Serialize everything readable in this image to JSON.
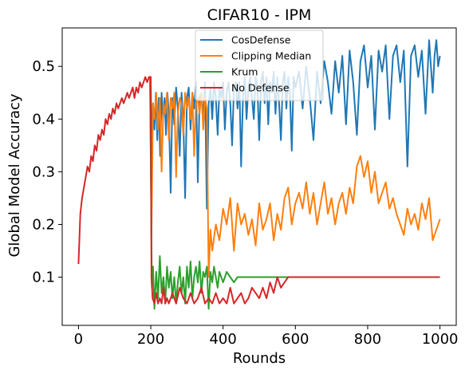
{
  "chart_data": {
    "type": "line",
    "title": "CIFAR10 - IPM",
    "xlabel": "Rounds",
    "ylabel": "Global Model Accuracy",
    "xlim": [
      -45,
      1045
    ],
    "ylim": [
      0.0085,
      0.573
    ],
    "xticks": [
      0,
      200,
      400,
      600,
      800,
      1000
    ],
    "yticks": [
      0.1,
      0.2,
      0.3,
      0.4,
      0.5
    ],
    "xtick_labels": [
      "0",
      "200",
      "400",
      "600",
      "800",
      "1000"
    ],
    "ytick_labels": [
      "0.1",
      "0.2",
      "0.3",
      "0.4",
      "0.5"
    ],
    "grid": false,
    "legend_position": "top-center",
    "series": [
      {
        "name": "CosDefense",
        "color": "#1f77b4",
        "x": [
          200,
          203,
          206,
          210,
          214,
          218,
          222,
          226,
          230,
          234,
          238,
          242,
          246,
          250,
          255,
          260,
          265,
          270,
          275,
          280,
          285,
          290,
          295,
          300,
          305,
          310,
          315,
          320,
          325,
          330,
          335,
          340,
          345,
          350,
          355,
          360,
          365,
          370,
          375,
          380,
          385,
          390,
          395,
          400,
          405,
          410,
          415,
          420,
          425,
          430,
          435,
          440,
          445,
          450,
          455,
          460,
          465,
          470,
          475,
          480,
          485,
          490,
          495,
          500,
          505,
          510,
          515,
          520,
          525,
          530,
          535,
          540,
          545,
          550,
          555,
          560,
          565,
          570,
          575,
          580,
          585,
          590,
          595,
          600,
          610,
          620,
          630,
          640,
          650,
          660,
          670,
          680,
          690,
          700,
          710,
          720,
          730,
          740,
          750,
          760,
          770,
          780,
          790,
          800,
          810,
          820,
          830,
          840,
          850,
          860,
          870,
          880,
          890,
          900,
          910,
          920,
          930,
          940,
          950,
          960,
          970,
          980,
          985,
          990,
          995,
          1000
        ],
        "y": [
          0.47,
          0.3,
          0.43,
          0.38,
          0.45,
          0.36,
          0.44,
          0.33,
          0.45,
          0.4,
          0.44,
          0.37,
          0.45,
          0.41,
          0.26,
          0.44,
          0.39,
          0.46,
          0.42,
          0.33,
          0.45,
          0.4,
          0.25,
          0.44,
          0.46,
          0.38,
          0.45,
          0.42,
          0.47,
          0.28,
          0.44,
          0.45,
          0.4,
          0.47,
          0.23,
          0.43,
          0.46,
          0.4,
          0.47,
          0.44,
          0.37,
          0.46,
          0.44,
          0.47,
          0.38,
          0.45,
          0.47,
          0.43,
          0.35,
          0.46,
          0.47,
          0.42,
          0.47,
          0.31,
          0.44,
          0.48,
          0.4,
          0.46,
          0.48,
          0.44,
          0.4,
          0.48,
          0.46,
          0.36,
          0.47,
          0.49,
          0.43,
          0.48,
          0.39,
          0.47,
          0.45,
          0.49,
          0.41,
          0.48,
          0.43,
          0.36,
          0.47,
          0.49,
          0.42,
          0.48,
          0.45,
          0.34,
          0.48,
          0.46,
          0.49,
          0.42,
          0.5,
          0.44,
          0.36,
          0.49,
          0.43,
          0.51,
          0.47,
          0.41,
          0.51,
          0.45,
          0.52,
          0.39,
          0.53,
          0.47,
          0.37,
          0.51,
          0.54,
          0.46,
          0.52,
          0.38,
          0.53,
          0.49,
          0.54,
          0.4,
          0.52,
          0.54,
          0.47,
          0.53,
          0.31,
          0.52,
          0.54,
          0.48,
          0.53,
          0.41,
          0.55,
          0.45,
          0.52,
          0.55,
          0.5,
          0.52
        ]
      },
      {
        "name": "Clipping Median",
        "color": "#ff7f0e",
        "x": [
          198,
          202,
          206,
          210,
          215,
          220,
          225,
          230,
          235,
          240,
          245,
          250,
          255,
          260,
          265,
          270,
          275,
          280,
          285,
          290,
          295,
          300,
          305,
          310,
          315,
          320,
          325,
          330,
          335,
          340,
          345,
          350,
          355,
          360,
          365,
          370,
          380,
          390,
          400,
          410,
          420,
          430,
          440,
          450,
          460,
          470,
          480,
          490,
          500,
          510,
          520,
          530,
          540,
          550,
          560,
          570,
          580,
          590,
          600,
          610,
          620,
          630,
          640,
          650,
          660,
          670,
          680,
          690,
          700,
          710,
          720,
          730,
          740,
          750,
          760,
          770,
          780,
          790,
          800,
          810,
          820,
          830,
          840,
          850,
          860,
          870,
          880,
          890,
          900,
          910,
          920,
          930,
          940,
          950,
          960,
          970,
          980,
          990,
          1000
        ],
        "y": [
          0.48,
          0.18,
          0.43,
          0.4,
          0.45,
          0.38,
          0.44,
          0.3,
          0.43,
          0.41,
          0.45,
          0.36,
          0.44,
          0.42,
          0.45,
          0.29,
          0.41,
          0.44,
          0.43,
          0.37,
          0.45,
          0.42,
          0.44,
          0.4,
          0.45,
          0.33,
          0.43,
          0.44,
          0.41,
          0.45,
          0.38,
          0.44,
          0.42,
          0.1,
          0.19,
          0.15,
          0.2,
          0.17,
          0.23,
          0.2,
          0.25,
          0.15,
          0.24,
          0.2,
          0.22,
          0.18,
          0.21,
          0.16,
          0.24,
          0.19,
          0.21,
          0.24,
          0.17,
          0.22,
          0.19,
          0.25,
          0.27,
          0.2,
          0.24,
          0.26,
          0.23,
          0.28,
          0.22,
          0.26,
          0.2,
          0.24,
          0.28,
          0.22,
          0.25,
          0.2,
          0.24,
          0.26,
          0.22,
          0.27,
          0.24,
          0.31,
          0.33,
          0.29,
          0.32,
          0.26,
          0.3,
          0.24,
          0.26,
          0.28,
          0.23,
          0.25,
          0.22,
          0.2,
          0.18,
          0.23,
          0.2,
          0.22,
          0.19,
          0.24,
          0.21,
          0.25,
          0.17,
          0.19,
          0.21
        ]
      },
      {
        "name": "Krum",
        "color": "#2ca02c",
        "x": [
          198,
          200,
          203,
          206,
          210,
          215,
          220,
          225,
          230,
          235,
          240,
          245,
          250,
          255,
          260,
          265,
          270,
          275,
          280,
          285,
          290,
          295,
          300,
          305,
          310,
          315,
          320,
          325,
          330,
          335,
          340,
          345,
          350,
          355,
          360,
          365,
          370,
          375,
          380,
          385,
          390,
          395,
          400,
          410,
          420,
          430,
          440,
          450,
          460,
          470,
          480,
          490,
          500,
          520,
          540,
          560,
          580,
          600,
          620,
          640,
          660,
          680,
          700
        ],
        "y": [
          0.48,
          0.33,
          0.08,
          0.12,
          0.04,
          0.11,
          0.06,
          0.14,
          0.07,
          0.1,
          0.05,
          0.12,
          0.08,
          0.11,
          0.06,
          0.1,
          0.05,
          0.09,
          0.12,
          0.07,
          0.1,
          0.05,
          0.12,
          0.08,
          0.13,
          0.06,
          0.1,
          0.12,
          0.09,
          0.13,
          0.07,
          0.11,
          0.1,
          0.12,
          0.04,
          0.11,
          0.09,
          0.12,
          0.1,
          0.08,
          0.11,
          0.1,
          0.09,
          0.11,
          0.1,
          0.09,
          0.1,
          0.1,
          0.1,
          0.1,
          0.1,
          0.1,
          0.1,
          0.1,
          0.1,
          0.1,
          0.1,
          0.1,
          0.1,
          0.1,
          0.1,
          0.1,
          0.1
        ]
      },
      {
        "name": "No Defense",
        "color": "#d62728",
        "x": [
          0,
          5,
          10,
          15,
          20,
          25,
          30,
          35,
          40,
          45,
          50,
          55,
          60,
          65,
          70,
          75,
          80,
          85,
          90,
          95,
          100,
          105,
          110,
          115,
          120,
          125,
          130,
          135,
          140,
          145,
          150,
          155,
          160,
          165,
          170,
          175,
          180,
          185,
          190,
          195,
          200,
          202,
          205,
          210,
          215,
          220,
          225,
          230,
          235,
          240,
          245,
          250,
          260,
          270,
          280,
          290,
          300,
          310,
          320,
          330,
          340,
          350,
          360,
          370,
          380,
          390,
          400,
          410,
          420,
          430,
          440,
          450,
          460,
          470,
          480,
          490,
          500,
          510,
          520,
          530,
          540,
          550,
          560,
          570,
          580,
          600,
          650,
          700,
          800,
          900,
          1000
        ],
        "y": [
          0.125,
          0.22,
          0.25,
          0.27,
          0.29,
          0.31,
          0.3,
          0.33,
          0.32,
          0.35,
          0.34,
          0.37,
          0.36,
          0.38,
          0.37,
          0.4,
          0.39,
          0.41,
          0.4,
          0.42,
          0.41,
          0.43,
          0.42,
          0.43,
          0.44,
          0.43,
          0.44,
          0.45,
          0.44,
          0.45,
          0.46,
          0.44,
          0.46,
          0.45,
          0.47,
          0.46,
          0.47,
          0.48,
          0.47,
          0.48,
          0.48,
          0.1,
          0.06,
          0.05,
          0.07,
          0.05,
          0.06,
          0.05,
          0.08,
          0.05,
          0.06,
          0.05,
          0.07,
          0.05,
          0.08,
          0.06,
          0.05,
          0.07,
          0.05,
          0.06,
          0.08,
          0.05,
          0.06,
          0.05,
          0.07,
          0.05,
          0.06,
          0.05,
          0.08,
          0.05,
          0.06,
          0.07,
          0.05,
          0.06,
          0.08,
          0.07,
          0.06,
          0.08,
          0.06,
          0.09,
          0.07,
          0.1,
          0.08,
          0.09,
          0.1,
          0.1,
          0.1,
          0.1,
          0.1,
          0.1,
          0.1
        ]
      }
    ]
  }
}
